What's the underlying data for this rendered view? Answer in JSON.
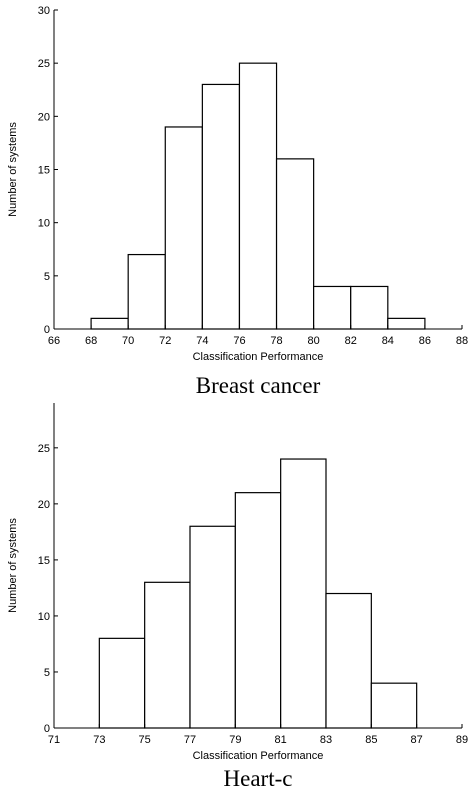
{
  "chart_data": [
    {
      "type": "bar",
      "title": "Breast cancer",
      "xlabel": "Classification Performance",
      "ylabel": "Number of systems",
      "xlim": [
        66,
        88
      ],
      "ylim": [
        0,
        30
      ],
      "xticks": [
        66,
        68,
        70,
        72,
        74,
        76,
        78,
        80,
        82,
        84,
        86,
        88
      ],
      "yticks": [
        0,
        5,
        10,
        15,
        20,
        25,
        30
      ],
      "bins": [
        {
          "x0": 68,
          "x1": 70,
          "count": 1
        },
        {
          "x0": 70,
          "x1": 72,
          "count": 7
        },
        {
          "x0": 72,
          "x1": 74,
          "count": 19
        },
        {
          "x0": 74,
          "x1": 76,
          "count": 23
        },
        {
          "x0": 76,
          "x1": 78,
          "count": 25
        },
        {
          "x0": 78,
          "x1": 80,
          "count": 16
        },
        {
          "x0": 80,
          "x1": 82,
          "count": 4
        },
        {
          "x0": 82,
          "x1": 84,
          "count": 4
        },
        {
          "x0": 84,
          "x1": 86,
          "count": 1
        }
      ],
      "grid": false
    },
    {
      "type": "bar",
      "title": "Heart-c",
      "xlabel": "Classification Performance",
      "ylabel": "Number of systems",
      "xlim": [
        71,
        89
      ],
      "ylim": [
        0,
        29
      ],
      "xticks": [
        71,
        73,
        75,
        77,
        79,
        81,
        83,
        85,
        87,
        89
      ],
      "yticks": [
        0,
        5,
        10,
        15,
        20,
        25
      ],
      "bins": [
        {
          "x0": 73,
          "x1": 75,
          "count": 8
        },
        {
          "x0": 75,
          "x1": 77,
          "count": 13
        },
        {
          "x0": 77,
          "x1": 79,
          "count": 18
        },
        {
          "x0": 79,
          "x1": 81,
          "count": 21
        },
        {
          "x0": 81,
          "x1": 83,
          "count": 24
        },
        {
          "x0": 83,
          "x1": 85,
          "count": 12
        },
        {
          "x0": 85,
          "x1": 87,
          "count": 4
        }
      ],
      "grid": false
    }
  ]
}
